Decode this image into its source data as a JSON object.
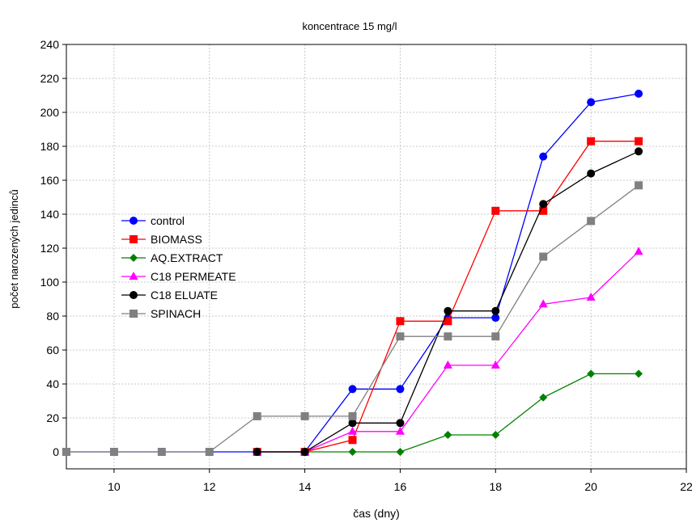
{
  "chart_data": {
    "type": "line",
    "title": "koncentrace 15 mg/l",
    "xlabel": "čas (dny)",
    "ylabel": "počet narozených jedinců",
    "xlim": [
      9,
      22
    ],
    "ylim": [
      -10,
      240
    ],
    "xticks": [
      10,
      12,
      14,
      16,
      18,
      20,
      22
    ],
    "yticks": [
      0,
      20,
      40,
      60,
      80,
      100,
      120,
      140,
      160,
      180,
      200,
      220,
      240
    ],
    "grid": true,
    "legend_position": "left-middle",
    "series": [
      {
        "name": "control",
        "color": "#0000ff",
        "marker": "circle",
        "x": [
          9,
          10,
          11,
          12,
          13,
          14,
          15,
          16,
          17,
          18,
          19,
          20,
          21
        ],
        "y": [
          0,
          0,
          0,
          0,
          0,
          0,
          37,
          37,
          79,
          79,
          174,
          206,
          211
        ]
      },
      {
        "name": "BIOMASS",
        "color": "#ff0000",
        "marker": "square",
        "x": [
          13,
          14,
          15,
          16,
          17,
          18,
          19,
          20,
          21
        ],
        "y": [
          0,
          0,
          7,
          77,
          77,
          142,
          142,
          183,
          183
        ]
      },
      {
        "name": "AQ.EXTRACT",
        "color": "#008000",
        "marker": "diamond",
        "x": [
          13,
          14,
          15,
          16,
          17,
          18,
          19,
          20,
          21
        ],
        "y": [
          0,
          0,
          0,
          0,
          10,
          10,
          32,
          46,
          46
        ]
      },
      {
        "name": "C18 PERMEATE",
        "color": "#ff00ff",
        "marker": "triangle",
        "x": [
          13,
          14,
          15,
          16,
          17,
          18,
          19,
          20,
          21
        ],
        "y": [
          0,
          0,
          12,
          12,
          51,
          51,
          87,
          91,
          118
        ]
      },
      {
        "name": "C18 ELUATE",
        "color": "#000000",
        "marker": "circle",
        "x": [
          13,
          14,
          15,
          16,
          17,
          18,
          19,
          20,
          21
        ],
        "y": [
          0,
          0,
          17,
          17,
          83,
          83,
          146,
          164,
          177
        ]
      },
      {
        "name": "SPINACH",
        "color": "#808080",
        "marker": "square",
        "x": [
          9,
          10,
          11,
          12,
          13,
          14,
          15,
          16,
          17,
          18,
          19,
          20,
          21
        ],
        "y": [
          0,
          0,
          0,
          0,
          21,
          21,
          21,
          68,
          68,
          68,
          115,
          136,
          157
        ]
      }
    ]
  }
}
